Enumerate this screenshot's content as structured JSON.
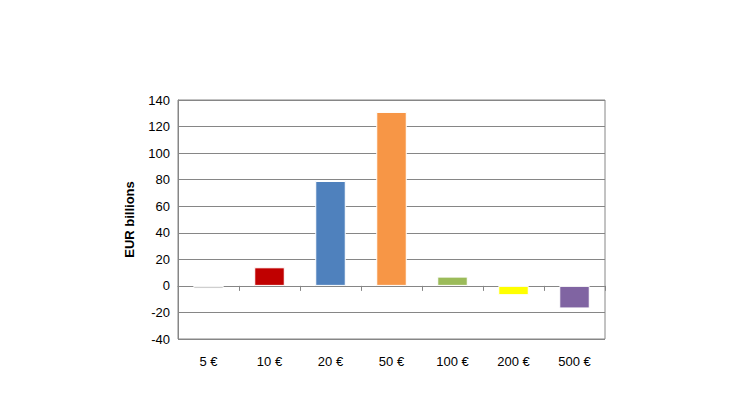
{
  "chart_data": {
    "type": "bar",
    "y_label": "EUR billions",
    "categories": [
      "5 €",
      "10 €",
      "20 €",
      "50 €",
      "100 €",
      "200 €",
      "500 €"
    ],
    "values": [
      -2,
      14,
      79,
      131,
      7,
      -7,
      -17
    ],
    "colors": [
      "#a6a6a6",
      "#c00000",
      "#4f81bd",
      "#f79646",
      "#9bbb59",
      "#ffff00",
      "#8064a2"
    ],
    "ylim": [
      -40,
      140
    ],
    "yticks": [
      -40,
      -20,
      0,
      20,
      40,
      60,
      80,
      100,
      120,
      140
    ],
    "grid": true
  }
}
